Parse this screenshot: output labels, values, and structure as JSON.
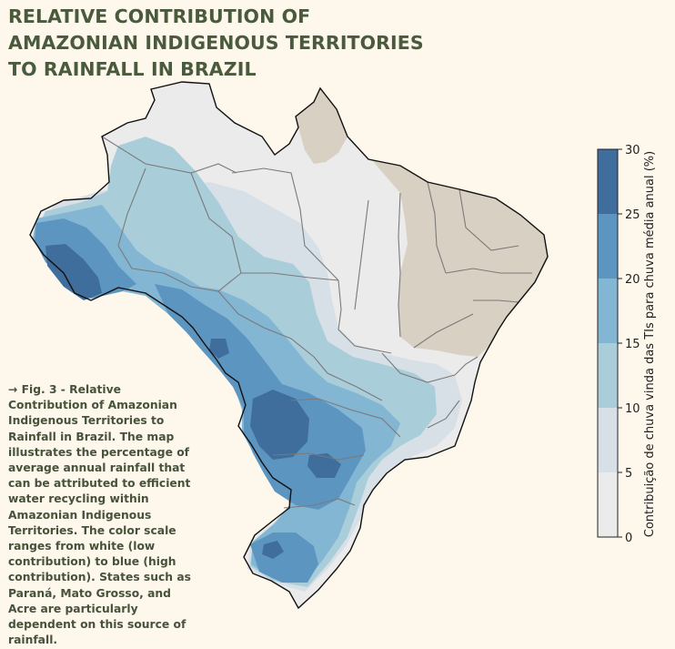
{
  "title": "RELATIVE CONTRIBUTION OF AMAZONIAN INDIGENOUS TERRITORIES TO RAINFALL IN BRAZIL",
  "caption": "→ Fig. 3 - Relative Contribution of Amazonian Indigenous Territories to Rainfall in Brazil. The map illustrates the percentage of average annual rainfall that can be attributed to efficient water recycling within Amazonian Indigenous Territories.  The color scale ranges from white (low contribution) to blue (high contribution). States such as Paraná, Mato Grosso, and Acre are particularly dependent on this source of rainfall.",
  "colorbar": {
    "label": "Contribuição de chuva vinda das TIs para chuva média anual (%)",
    "ticks": [
      "0",
      "5",
      "10",
      "15",
      "20",
      "25",
      "30"
    ],
    "range": [
      0,
      30
    ],
    "bins": [
      {
        "from": 0,
        "to": 5,
        "color": "#ebebeb"
      },
      {
        "from": 5,
        "to": 10,
        "color": "#d7e0e6"
      },
      {
        "from": 10,
        "to": 15,
        "color": "#aacdda"
      },
      {
        "from": 15,
        "to": 20,
        "color": "#82b6d2"
      },
      {
        "from": 20,
        "to": 25,
        "color": "#5d95c1"
      },
      {
        "from": 25,
        "to": 30,
        "color": "#3f6d9c"
      }
    ]
  },
  "colors": {
    "no_data_region": "#d9d0c4",
    "state_border": "#7a7a7a",
    "country_border": "#111111",
    "title_text": "#4a5a3c"
  }
}
